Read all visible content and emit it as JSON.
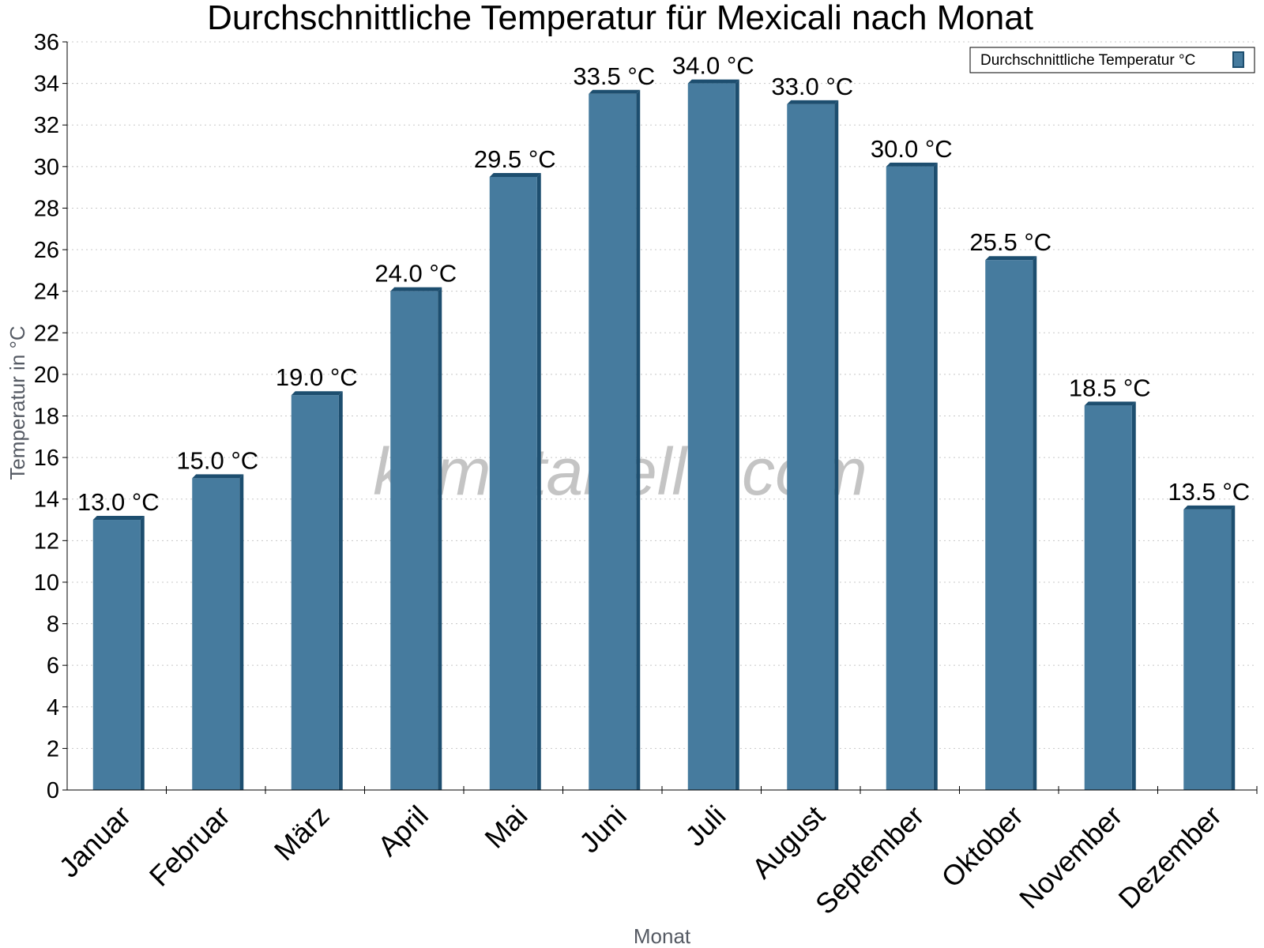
{
  "watermark": "klimatabelle.com",
  "chart_data": {
    "type": "bar",
    "title": "Durchschnittliche Temperatur für Mexicali nach Monat",
    "xlabel": "Monat",
    "ylabel": "Temperatur in °C",
    "ylim": [
      0,
      36
    ],
    "y_ticks": [
      0,
      2,
      4,
      6,
      8,
      10,
      12,
      14,
      16,
      18,
      20,
      22,
      24,
      26,
      28,
      30,
      32,
      34,
      36
    ],
    "grid": true,
    "legend_position": "top-right",
    "categories": [
      "Januar",
      "Februar",
      "März",
      "April",
      "Mai",
      "Juni",
      "Juli",
      "August",
      "September",
      "Oktober",
      "November",
      "Dezember"
    ],
    "series": [
      {
        "name": "Durchschnittliche Temperatur °C",
        "values": [
          13.0,
          15.0,
          19.0,
          24.0,
          29.5,
          33.5,
          34.0,
          33.0,
          30.0,
          25.5,
          18.5,
          13.5
        ],
        "data_labels": [
          "13.0 °C",
          "15.0 °C",
          "19.0 °C",
          "24.0 °C",
          "29.5 °C",
          "33.5 °C",
          "34.0 °C",
          "33.0 °C",
          "30.0 °C",
          "25.5 °C",
          "18.5 °C",
          "13.5 °C"
        ],
        "color": "#467b9e",
        "side_color": "#1d4e6f"
      }
    ]
  }
}
